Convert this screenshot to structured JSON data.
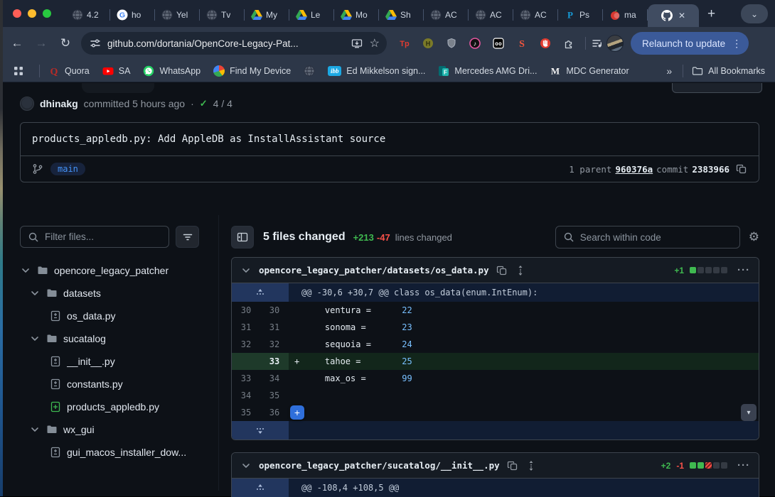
{
  "browser": {
    "tabs": [
      {
        "icon": "globe",
        "label": "4.2"
      },
      {
        "icon": "google",
        "label": "ho"
      },
      {
        "icon": "globe",
        "label": "Yel"
      },
      {
        "icon": "globe",
        "label": "Tv"
      },
      {
        "icon": "drive",
        "label": "My"
      },
      {
        "icon": "drive",
        "label": "Le"
      },
      {
        "icon": "drive",
        "label": "Mo"
      },
      {
        "icon": "drive",
        "label": "Sh"
      },
      {
        "icon": "globe",
        "label": "AC"
      },
      {
        "icon": "globe",
        "label": "AC"
      },
      {
        "icon": "globe",
        "label": "AC"
      },
      {
        "icon": "paypal",
        "label": "Ps"
      },
      {
        "icon": "apple",
        "label": "ma"
      }
    ],
    "new_tab_label": "+",
    "toolbar": {
      "url": "github.com/dortania/OpenCore-Legacy-Pat...",
      "relaunch_label": "Relaunch to update",
      "menu_dots": "⋮"
    },
    "extensions": [
      "tp",
      "honey",
      "shield",
      "music",
      "oo",
      "sswirl",
      "hand",
      "puzzle"
    ],
    "bookmarks": [
      {
        "icon": "quora",
        "label": "Quora"
      },
      {
        "icon": "youtube",
        "label": "SA"
      },
      {
        "icon": "whatsapp",
        "label": "WhatsApp"
      },
      {
        "icon": "findmy",
        "label": "Find My Device"
      },
      {
        "icon": "globe",
        "label": ""
      },
      {
        "icon": "ibb",
        "label": "Ed Mikkelson sign..."
      },
      {
        "icon": "forms",
        "label": "Mercedes AMG Dri..."
      },
      {
        "icon": "mdc",
        "label": "MDC Generator"
      }
    ],
    "bookmarks_overflow": "»",
    "all_bookmarks_label": "All Bookmarks"
  },
  "commit": {
    "author": "dhinakg",
    "meta": "committed 5 hours ago",
    "dot": "·",
    "check": "✓",
    "checks_ratio": "4 / 4",
    "title": "products_appledb.py: Add AppleDB as InstallAssistant source",
    "branch": "main",
    "parent_label": "1 parent",
    "parent_sha": "960376a",
    "commit_label": "commit",
    "commit_sha": "2383966"
  },
  "file_tree": {
    "filter_placeholder": "Filter files...",
    "items": [
      {
        "type": "folder",
        "label": "opencore_legacy_patcher",
        "indent": 0
      },
      {
        "type": "folder",
        "label": "datasets",
        "indent": 1
      },
      {
        "type": "file-modified",
        "label": "os_data.py",
        "indent": 2
      },
      {
        "type": "folder",
        "label": "sucatalog",
        "indent": 1
      },
      {
        "type": "file-modified",
        "label": "__init__.py",
        "indent": 2
      },
      {
        "type": "file-modified",
        "label": "constants.py",
        "indent": 2
      },
      {
        "type": "file-added",
        "label": "products_appledb.py",
        "indent": 2
      },
      {
        "type": "folder",
        "label": "wx_gui",
        "indent": 1
      },
      {
        "type": "file-modified",
        "label": "gui_macos_installer_dow...",
        "indent": 2
      }
    ]
  },
  "diffbar": {
    "files_changed": "5 files changed",
    "additions": "+213",
    "deletions": "-47",
    "lines_changed": "lines changed",
    "search_placeholder": "Search within code"
  },
  "diffs": [
    {
      "path": "opencore_legacy_patcher/datasets/os_data.py",
      "additions": "+1",
      "deletions": "",
      "blocks": [
        "added",
        "neutral",
        "neutral",
        "neutral",
        "neutral"
      ],
      "hunk": "@@ -30,6 +30,7 @@ class os_data(enum.IntEnum):",
      "rows": [
        {
          "old": "30",
          "new": "30",
          "marker": "",
          "code": "    ventura =      ",
          "value": "22",
          "type": "context"
        },
        {
          "old": "31",
          "new": "31",
          "marker": "",
          "code": "    sonoma =       ",
          "value": "23",
          "type": "context"
        },
        {
          "old": "32",
          "new": "32",
          "marker": "",
          "code": "    sequoia =      ",
          "value": "24",
          "type": "context"
        },
        {
          "old": "",
          "new": "33",
          "marker": "+",
          "code": "    tahoe =        ",
          "value": "25",
          "type": "added"
        },
        {
          "old": "33",
          "new": "34",
          "marker": "",
          "code": "    max_os =       ",
          "value": "99",
          "type": "context"
        },
        {
          "old": "34",
          "new": "35",
          "marker": "",
          "code": "",
          "value": "",
          "type": "context"
        },
        {
          "old": "35",
          "new": "36",
          "marker": "",
          "code": "",
          "value": "",
          "type": "context",
          "plus_button": "+"
        }
      ]
    },
    {
      "path": "opencore_legacy_patcher/sucatalog/__init__.py",
      "additions": "+2",
      "deletions": "-1",
      "blocks": [
        "added",
        "added",
        "removed",
        "neutral",
        "neutral"
      ],
      "hunk": "@@ -108,4 +108,5 @@"
    }
  ]
}
